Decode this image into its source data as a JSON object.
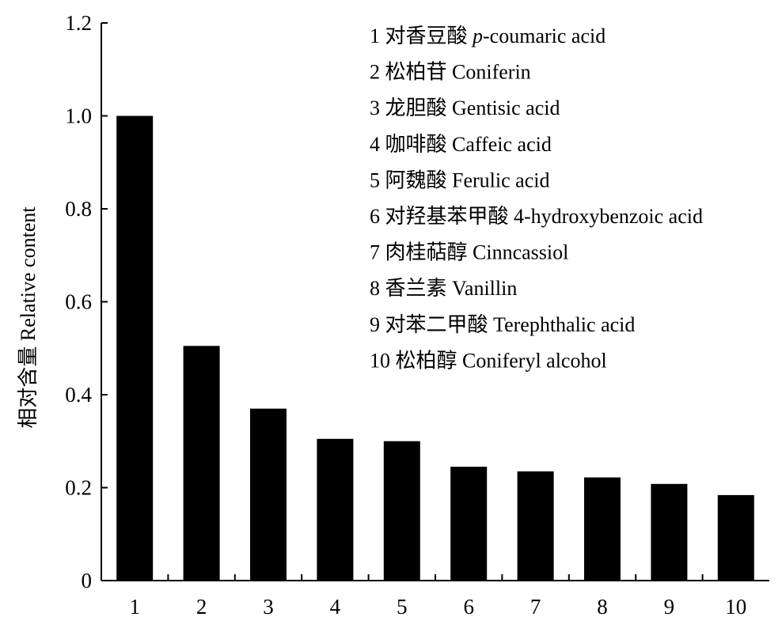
{
  "chart_data": {
    "type": "bar",
    "categories": [
      "1",
      "2",
      "3",
      "4",
      "5",
      "6",
      "7",
      "8",
      "9",
      "10"
    ],
    "values": [
      1.0,
      0.505,
      0.37,
      0.305,
      0.3,
      0.245,
      0.235,
      0.222,
      0.208,
      0.184
    ],
    "ylabel": "相对含量 Relative content",
    "xlabel": "",
    "ylim": [
      0,
      1.2
    ],
    "yticks": [
      {
        "value": 0,
        "label": "0"
      },
      {
        "value": 0.2,
        "label": "0.2"
      },
      {
        "value": 0.4,
        "label": "0.4"
      },
      {
        "value": 0.6,
        "label": "0.6"
      },
      {
        "value": 0.8,
        "label": "0.8"
      },
      {
        "value": 1.0,
        "label": "1.0"
      },
      {
        "value": 1.2,
        "label": "1.2"
      }
    ],
    "bar_color": "#000000",
    "legend_placement": "top-right",
    "legend": [
      {
        "num": "1",
        "cn": "对香豆酸",
        "prefix": "p",
        "en": "-coumaric acid"
      },
      {
        "num": "2",
        "cn": "松柏苷",
        "prefix": "",
        "en": "Coniferin"
      },
      {
        "num": "3",
        "cn": "龙胆酸",
        "prefix": "",
        "en": "Gentisic acid"
      },
      {
        "num": "4",
        "cn": "咖啡酸",
        "prefix": "",
        "en": "Caffeic acid"
      },
      {
        "num": "5",
        "cn": "阿魏酸",
        "prefix": "",
        "en": "Ferulic acid"
      },
      {
        "num": "6",
        "cn": "对羟基苯甲酸",
        "prefix": "",
        "en": "4-hydroxybenzoic acid"
      },
      {
        "num": "7",
        "cn": "肉桂萜醇",
        "prefix": "",
        "en": "Cinncassiol"
      },
      {
        "num": "8",
        "cn": "香兰素",
        "prefix": "",
        "en": "Vanillin"
      },
      {
        "num": "9",
        "cn": "对苯二甲酸",
        "prefix": "",
        "en": "Terephthalic acid"
      },
      {
        "num": "10",
        "cn": "松柏醇",
        "prefix": "",
        "en": "Coniferyl alcohol"
      }
    ]
  }
}
